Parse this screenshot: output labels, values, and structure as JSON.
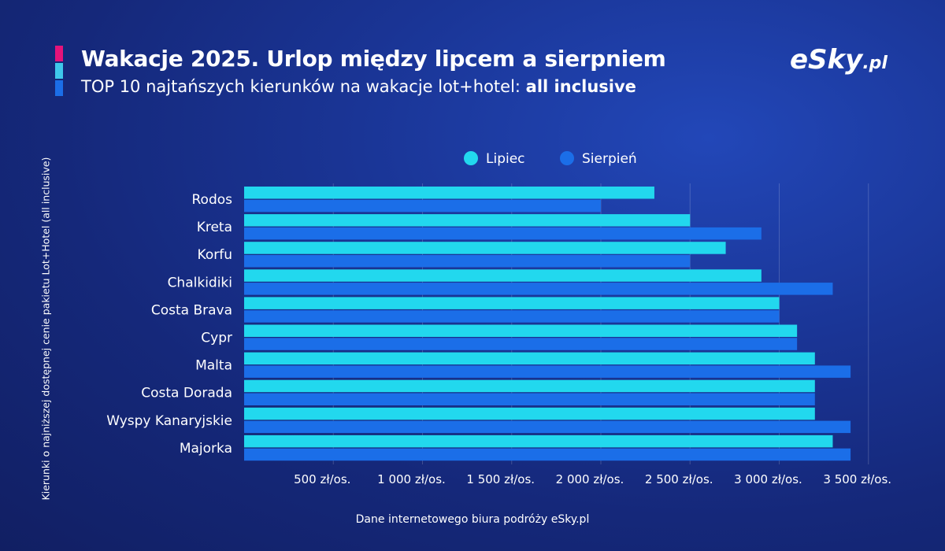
{
  "header": {
    "title": "Wakacje 2025. Urlop między lipcem a sierpniem",
    "subtitle_prefix": "TOP 10 najtańszych kierunków na wakacje lot+hotel: ",
    "subtitle_bold": "all inclusive"
  },
  "logo": {
    "main": "eSky",
    "suffix": ".pl"
  },
  "colors": {
    "lipiec": "#22d8ee",
    "sierpien": "#1b6ee8",
    "accent": [
      "#e5137a",
      "#3ec7ea",
      "#1b6ee8"
    ]
  },
  "source": "Dane internetowego biura podróży eSky.pl",
  "chart_data": {
    "type": "bar",
    "orientation": "horizontal",
    "categories": [
      "Rodos",
      "Kreta",
      "Korfu",
      "Chalkidiki",
      "Costa Brava",
      "Cypr",
      "Malta",
      "Costa Dorada",
      "Wyspy Kanaryjskie",
      "Majorka"
    ],
    "series": [
      {
        "name": "Lipiec",
        "values": [
          2300,
          2500,
          2700,
          2900,
          3000,
          3100,
          3200,
          3200,
          3200,
          3300
        ]
      },
      {
        "name": "Sierpień",
        "values": [
          2000,
          2900,
          2500,
          3300,
          3000,
          3100,
          3400,
          3200,
          3400,
          3400
        ]
      }
    ],
    "xlim": [
      0,
      3500
    ],
    "x_ticks": [
      500,
      1000,
      1500,
      2000,
      2500,
      3000,
      3500
    ],
    "x_tick_labels": [
      "500 zł/os.",
      "1 000 zł/os.",
      "1 500 zł/os.",
      "2 000 zł/os.",
      "2 500 zł/os.",
      "3 000 zł/os.",
      "3 500 zł/os."
    ],
    "ylabel": "Kierunki o najniższej dostępnej cenie pakietu Lot+Hotel (all inclusive)",
    "xlabel": "",
    "legend": "top-center",
    "grid": true
  }
}
